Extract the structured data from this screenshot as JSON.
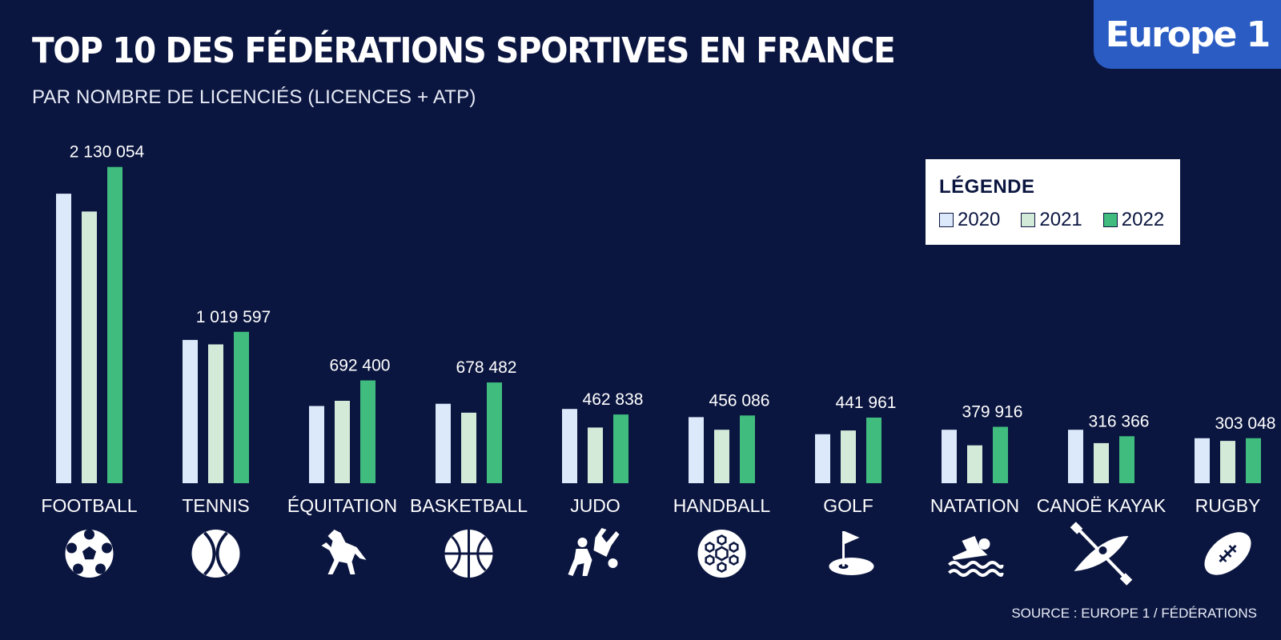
{
  "brand": {
    "name": "Europe 1"
  },
  "chart_data": {
    "type": "bar",
    "title": "TOP 10 DES FÉDÉRATIONS SPORTIVES EN FRANCE",
    "subtitle": "PAR NOMBRE DE LICENCIÉS (LICENCES + ATP)",
    "categories": [
      "FOOTBALL",
      "TENNIS",
      "ÉQUITATION",
      "BASKETBALL",
      "JUDO",
      "HANDBALL",
      "GOLF",
      "NATATION",
      "CANOË KAYAK",
      "RUGBY"
    ],
    "category_icons": [
      "soccer-ball-icon",
      "tennis-ball-icon",
      "horse-icon",
      "basketball-icon",
      "judo-icon",
      "handball-icon",
      "golf-icon",
      "swimming-icon",
      "kayak-icon",
      "rugby-ball-icon"
    ],
    "series": [
      {
        "name": "2020",
        "color": "#dce9fb",
        "values": [
          1950000,
          965000,
          520000,
          535000,
          500000,
          445000,
          330000,
          360000,
          360000,
          303000
        ]
      },
      {
        "name": "2021",
        "color": "#d4ead9",
        "values": [
          1830000,
          935000,
          555000,
          475000,
          375000,
          360000,
          355000,
          255000,
          270000,
          285000
        ]
      },
      {
        "name": "2022",
        "color": "#3fbc7e",
        "values": [
          2130054,
          1019597,
          692400,
          678482,
          462838,
          456086,
          441961,
          379916,
          316366,
          303048
        ]
      }
    ],
    "value_labels": [
      "2 130 054",
      "1 019 597",
      "692 400",
      "678 482",
      "462 838",
      "456 086",
      "441 961",
      "379 916",
      "316 366",
      "303 048"
    ],
    "ylim": [
      0,
      2150000
    ],
    "legend": {
      "title": "LÉGENDE",
      "position": "top-right"
    },
    "grid": false
  },
  "source": "SOURCE : EUROPE 1 / FÉDÉRATIONS"
}
